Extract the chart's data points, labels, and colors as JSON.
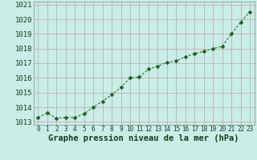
{
  "x": [
    0,
    1,
    2,
    3,
    4,
    5,
    6,
    7,
    8,
    9,
    10,
    11,
    12,
    13,
    14,
    15,
    16,
    17,
    18,
    19,
    20,
    21,
    22,
    23
  ],
  "y": [
    1013.3,
    1013.6,
    1013.25,
    1013.3,
    1013.3,
    1013.55,
    1014.0,
    1014.4,
    1014.85,
    1015.35,
    1016.0,
    1016.05,
    1016.6,
    1016.8,
    1017.05,
    1017.15,
    1017.45,
    1017.65,
    1017.8,
    1018.0,
    1018.15,
    1019.0,
    1019.8,
    1020.5
  ],
  "line_color": "#1a5c1a",
  "marker": "D",
  "marker_size": 2.5,
  "background_color": "#c8eee8",
  "grid_color": "#c8a0a0",
  "xlabel": "Graphe pression niveau de la mer (hPa)",
  "xlabel_fontsize": 7.5,
  "ylabel_fontsize": 6.5,
  "xtick_fontsize": 5.5,
  "ytick_values": [
    1013,
    1014,
    1015,
    1016,
    1017,
    1018,
    1019,
    1020,
    1021
  ],
  "ylim": [
    1012.8,
    1021.2
  ],
  "xlim": [
    -0.5,
    23.5
  ]
}
